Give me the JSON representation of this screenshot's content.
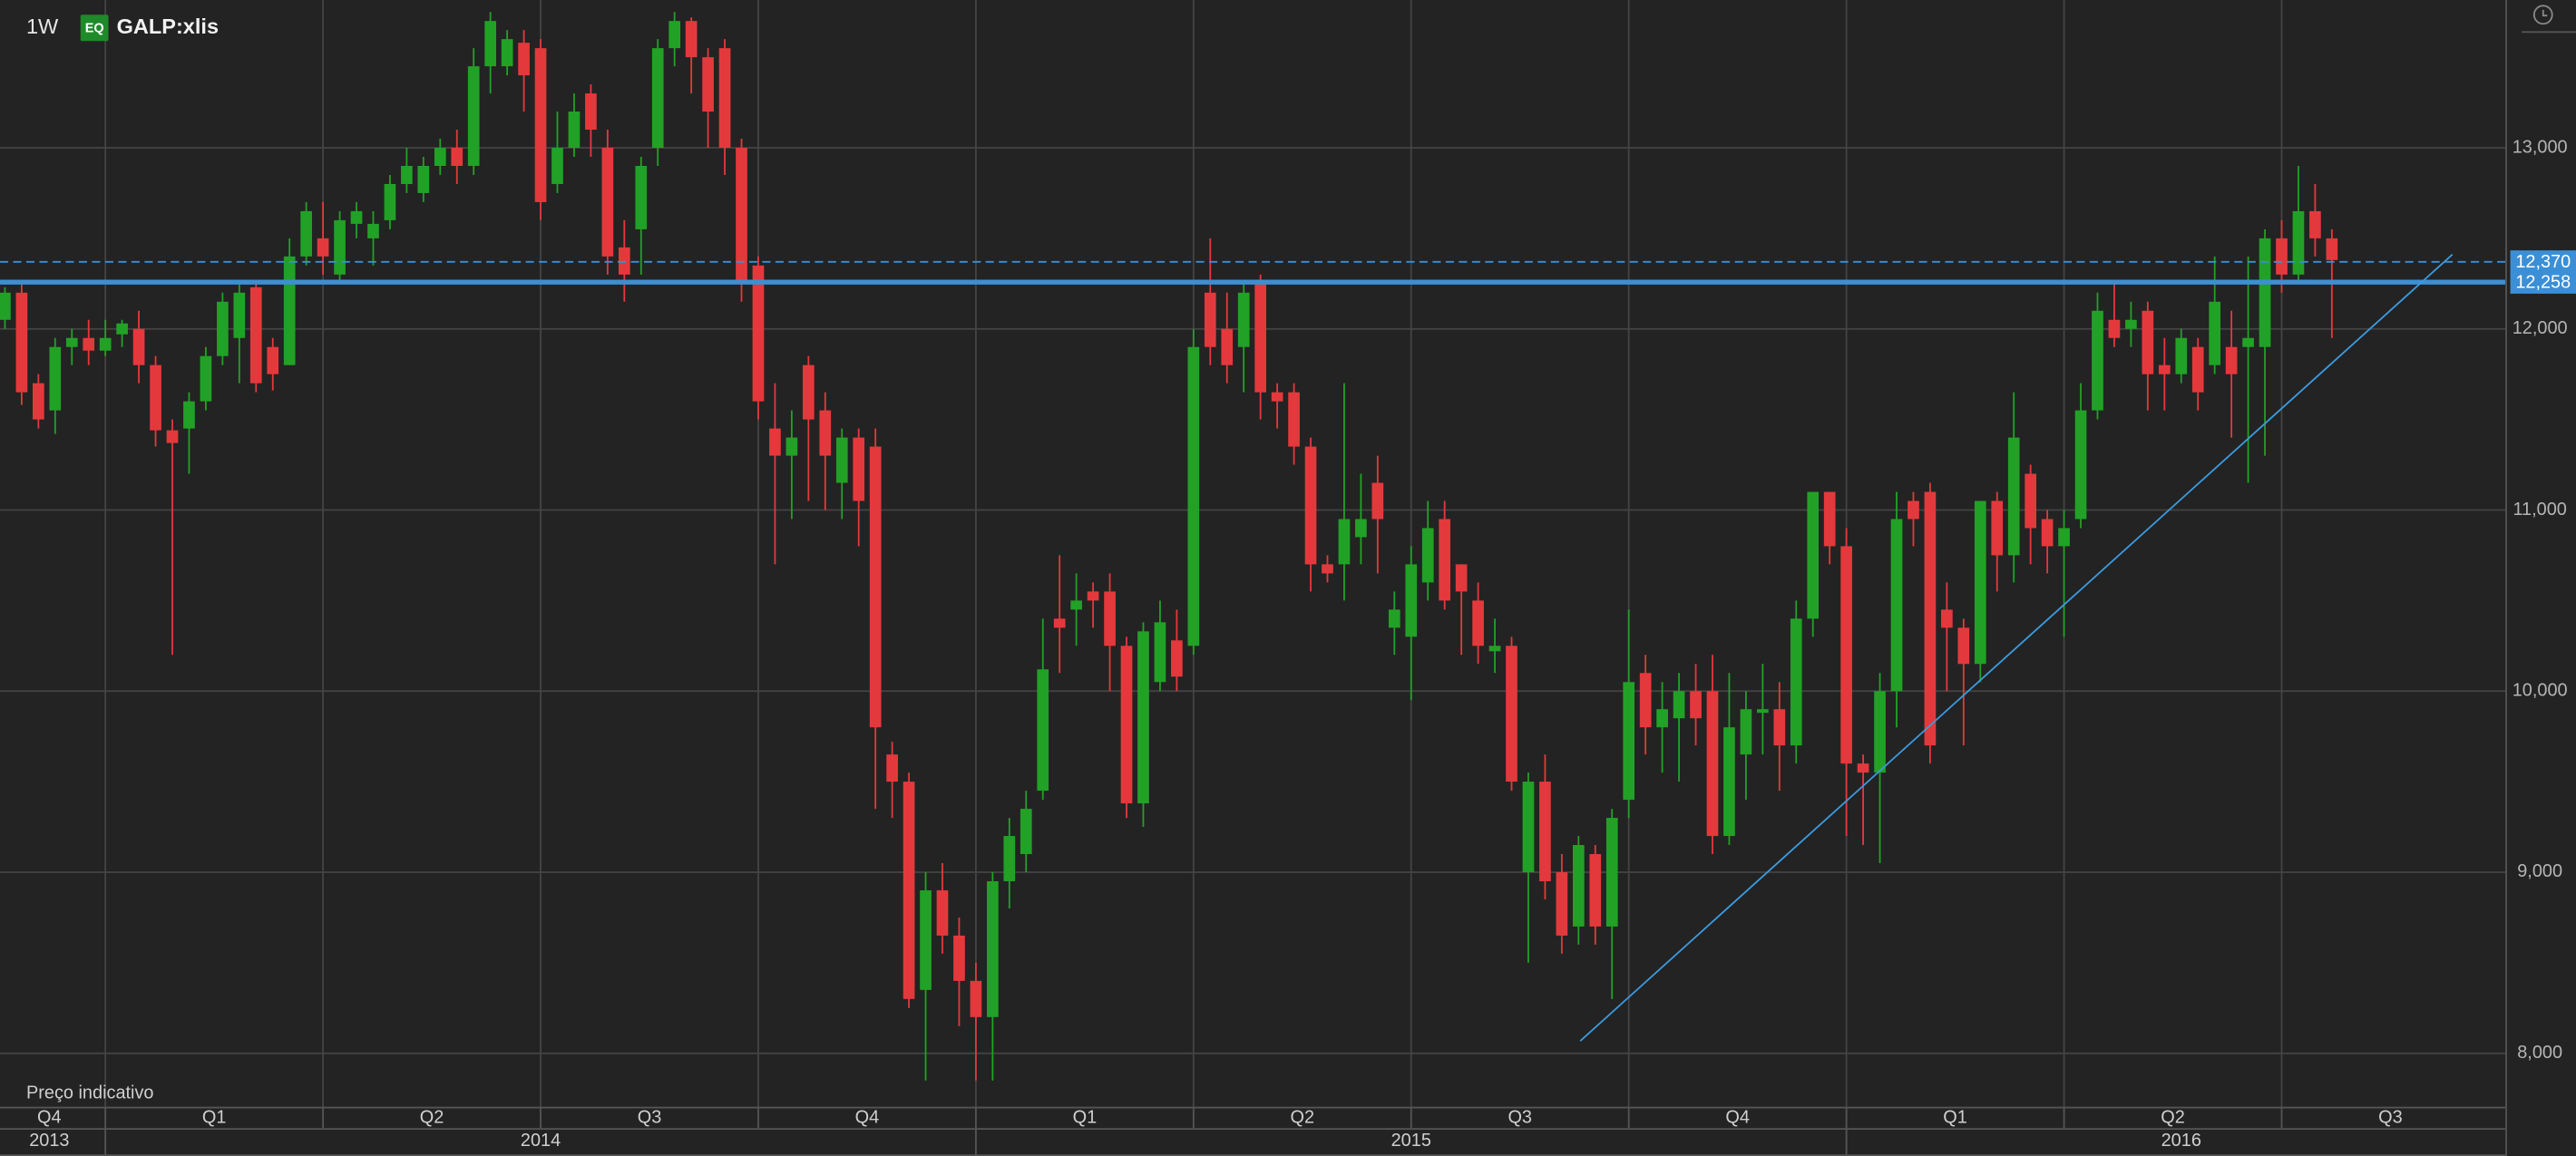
{
  "header": {
    "interval": "1W",
    "badge": "EQ",
    "symbol": "GALP:xlis"
  },
  "chart_data": {
    "type": "candlestick",
    "categories": [
      null,
      null,
      null,
      null,
      null,
      null,
      null,
      null,
      null,
      null,
      null,
      null,
      null,
      null,
      null,
      null,
      null,
      null,
      null,
      null,
      null,
      null,
      null,
      null,
      null,
      null,
      null,
      null,
      null,
      null,
      null,
      null,
      null,
      null,
      null,
      null,
      null,
      null,
      null,
      null,
      null,
      null,
      null,
      null,
      null,
      null,
      null,
      null,
      null,
      null,
      null,
      null,
      null,
      null,
      null,
      null,
      null,
      null,
      null,
      null,
      null,
      null,
      null,
      null,
      null,
      null,
      null,
      null,
      null,
      null,
      null,
      null,
      null,
      null,
      null,
      null,
      null,
      null,
      null,
      null,
      null,
      null,
      null,
      null,
      null,
      null,
      null,
      null,
      null,
      null,
      null,
      null,
      null,
      null,
      null,
      null,
      null,
      null,
      null,
      null,
      null,
      null,
      null,
      null,
      null,
      null,
      null,
      null,
      null,
      null,
      null,
      null,
      null,
      null,
      null,
      null,
      null,
      null,
      null,
      null,
      null,
      null,
      null,
      null,
      null,
      null,
      null,
      null,
      null,
      null,
      null,
      null,
      null,
      null,
      null,
      null,
      null,
      null,
      null,
      null
    ],
    "open": [
      12050,
      12200,
      11700,
      11550,
      11900,
      11950,
      11880,
      11970,
      12000,
      11800,
      11440,
      11450,
      11600,
      11850,
      11950,
      12230,
      11900,
      11800,
      12400,
      12500,
      12300,
      12580,
      12500,
      12600,
      12800,
      12750,
      12900,
      13000,
      12900,
      13450,
      13450,
      13580,
      13550,
      12800,
      13000,
      13300,
      13000,
      12450,
      12550,
      13000,
      13550,
      13700,
      13500,
      13550,
      13000,
      12350,
      11450,
      11300,
      11800,
      11550,
      11150,
      11400,
      11350,
      9650,
      9500,
      8350,
      8900,
      8650,
      8400,
      8200,
      8950,
      9100,
      9450,
      10400,
      10450,
      10550,
      10550,
      10250,
      9380,
      10050,
      10280,
      10250,
      12200,
      12000,
      11900,
      12250,
      11650,
      11650,
      11350,
      10700,
      10700,
      10850,
      11150,
      10350,
      10300,
      10600,
      10950,
      10700,
      10500,
      10220,
      10250,
      9000,
      9500,
      9000,
      8700,
      9100,
      8700,
      9400,
      10100,
      9800,
      9850,
      10000,
      10000,
      9200,
      9650,
      9880,
      9900,
      9700,
      10400,
      11100,
      10800,
      9600,
      9550,
      10000,
      11050,
      11100,
      10450,
      10350,
      10150,
      11050,
      10750,
      11200,
      10950,
      10800,
      10950,
      11550,
      12050,
      12000,
      12100,
      11800,
      11750,
      11900,
      11800,
      11900,
      11900,
      11900,
      12500,
      12300,
      12650,
      12500
    ],
    "high": [
      12230,
      12250,
      11750,
      11950,
      12000,
      12050,
      12050,
      12050,
      12100,
      11850,
      11500,
      11650,
      11900,
      12200,
      12250,
      12270,
      11950,
      12500,
      12700,
      12700,
      12650,
      12700,
      12650,
      12850,
      13000,
      12950,
      13050,
      13100,
      13550,
      13750,
      13650,
      13650,
      13600,
      13200,
      13300,
      13350,
      13100,
      12600,
      12950,
      13600,
      13750,
      13720,
      13550,
      13600,
      13050,
      12400,
      11700,
      11550,
      11850,
      11650,
      11450,
      11450,
      11450,
      9720,
      9550,
      9000,
      9050,
      8750,
      8500,
      9000,
      9300,
      9450,
      10400,
      10750,
      10650,
      10600,
      10650,
      10300,
      10380,
      10500,
      10450,
      12000,
      12500,
      12200,
      12250,
      12300,
      11700,
      11700,
      11400,
      10750,
      11700,
      11200,
      11300,
      10550,
      10800,
      11050,
      11050,
      10700,
      10600,
      10400,
      10300,
      9550,
      9650,
      9100,
      9200,
      9150,
      9350,
      10450,
      10200,
      10050,
      10100,
      10150,
      10200,
      10100,
      10000,
      10150,
      10050,
      10500,
      11100,
      11100,
      10900,
      9650,
      10100,
      11100,
      11100,
      11150,
      10600,
      10400,
      11050,
      11100,
      11650,
      11250,
      11000,
      11000,
      11700,
      12200,
      12250,
      12150,
      12150,
      11950,
      12000,
      11950,
      12400,
      12100,
      12400,
      12550,
      12600,
      12900,
      12800,
      12550
    ],
    "low": [
      12000,
      11580,
      11450,
      11420,
      11800,
      11800,
      11850,
      11900,
      11700,
      11350,
      10200,
      11200,
      11550,
      11800,
      11700,
      11650,
      11660,
      11800,
      12350,
      12300,
      12250,
      12500,
      12350,
      12550,
      12750,
      12700,
      12850,
      12800,
      12850,
      13300,
      13400,
      13200,
      12600,
      12750,
      12950,
      12950,
      12300,
      12150,
      12300,
      12900,
      13450,
      13300,
      13000,
      12850,
      12150,
      11500,
      10700,
      10950,
      11050,
      11000,
      10950,
      10800,
      9350,
      9300,
      8250,
      7850,
      8550,
      8150,
      7850,
      7850,
      8800,
      9000,
      9400,
      10100,
      10250,
      10350,
      10000,
      9300,
      9250,
      10000,
      10000,
      10200,
      11800,
      11700,
      11650,
      11500,
      11450,
      11250,
      10550,
      10600,
      10500,
      10700,
      10650,
      10200,
      9950,
      10500,
      10450,
      10200,
      10150,
      10100,
      9450,
      8500,
      8850,
      8550,
      8600,
      8600,
      8300,
      9300,
      9650,
      9550,
      9500,
      9700,
      9100,
      9150,
      9400,
      9650,
      9450,
      9600,
      10300,
      10700,
      9200,
      9150,
      9050,
      9800,
      10800,
      9600,
      10000,
      9700,
      10050,
      10550,
      10600,
      10700,
      10650,
      10300,
      10900,
      11500,
      11900,
      11900,
      11550,
      11550,
      11700,
      11550,
      11750,
      11400,
      11150,
      11300,
      12200,
      12250,
      12400,
      11950
    ],
    "close": [
      12200,
      11650,
      11500,
      11900,
      11950,
      11880,
      11950,
      12030,
      11800,
      11440,
      11370,
      11600,
      11850,
      12150,
      12200,
      11700,
      11750,
      12400,
      12650,
      12400,
      12600,
      12650,
      12580,
      12800,
      12900,
      12900,
      13000,
      12900,
      13450,
      13700,
      13600,
      13400,
      12700,
      13000,
      13200,
      13100,
      12400,
      12300,
      12900,
      13550,
      13700,
      13500,
      13200,
      13000,
      12250,
      11600,
      11300,
      11400,
      11500,
      11300,
      11400,
      11050,
      9800,
      9500,
      8300,
      8900,
      8650,
      8400,
      8200,
      8950,
      9200,
      9350,
      10120,
      10350,
      10500,
      10500,
      10250,
      9380,
      10330,
      10380,
      10080,
      11900,
      11900,
      11800,
      12200,
      11650,
      11600,
      11350,
      10700,
      10650,
      10950,
      10950,
      10950,
      10450,
      10700,
      10900,
      10500,
      10550,
      10250,
      10250,
      9500,
      9500,
      8950,
      8650,
      9150,
      8700,
      9300,
      10050,
      9800,
      9900,
      10000,
      9850,
      9200,
      9800,
      9900,
      9900,
      9700,
      10400,
      11100,
      10800,
      9600,
      9550,
      10000,
      10950,
      10950,
      9700,
      10350,
      10150,
      11050,
      10750,
      11400,
      10900,
      10800,
      10900,
      11550,
      12100,
      11950,
      12050,
      11750,
      11750,
      11950,
      11650,
      12150,
      11750,
      11950,
      12500,
      12300,
      12650,
      12500,
      12380
    ],
    "up_color": "#22a127",
    "down_color": "#e4393c",
    "ylim": [
      7705,
      13816
    ],
    "yticks": [
      {
        "value": 8000,
        "label": "8,000"
      },
      {
        "value": 9000,
        "label": "9,000"
      },
      {
        "value": 10000,
        "label": "10,000"
      },
      {
        "value": 11000,
        "label": "11,000"
      },
      {
        "value": 12000,
        "label": "12,000"
      },
      {
        "value": 13000,
        "label": "13,000"
      }
    ],
    "y_axis_side": "right",
    "grid": true,
    "xticks": [
      {
        "value": 2.65,
        "label": "Q4"
      },
      {
        "value": 12.5,
        "label": "Q1"
      },
      {
        "value": 25.5,
        "label": "Q2"
      },
      {
        "value": 38.5,
        "label": "Q3"
      },
      {
        "value": 51.5,
        "label": "Q4"
      },
      {
        "value": 64.5,
        "label": "Q1"
      },
      {
        "value": 77.5,
        "label": "Q2"
      },
      {
        "value": 90.5,
        "label": "Q3"
      },
      {
        "value": 103.5,
        "label": "Q4"
      },
      {
        "value": 116.5,
        "label": "Q1"
      },
      {
        "value": 129.5,
        "label": "Q2"
      },
      {
        "value": 142.5,
        "label": "Q3"
      }
    ],
    "year_ticks": [
      {
        "value": 2.65,
        "label": "2013"
      },
      {
        "value": 32,
        "label": "2014"
      },
      {
        "value": 84,
        "label": "2015"
      },
      {
        "value": 130,
        "label": "2016"
      }
    ],
    "price_lines": [
      {
        "value": 12370,
        "label": "12,370",
        "style": "dashed",
        "color": "#3b8fd6"
      },
      {
        "value": 12258,
        "label": "12,258",
        "style": "solid",
        "color": "#3b8fd6"
      }
    ],
    "trendline": {
      "x": [
        94.1,
        146.2
      ],
      "y": [
        8068,
        12411
      ],
      "color": "#3b9be0"
    },
    "note": "Preço indicativo"
  }
}
